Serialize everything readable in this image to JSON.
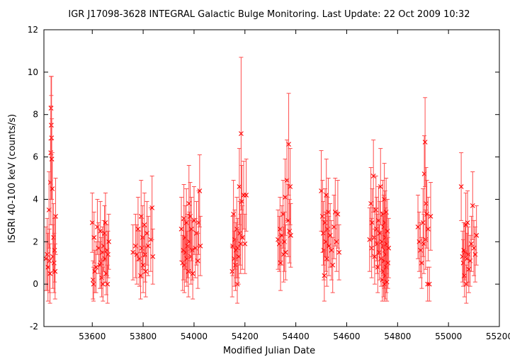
{
  "chart_data": {
    "type": "scatter",
    "title": "IGR J17098-3628   INTEGRAL Galactic Bulge Monitoring.  Last Update: 22 Oct 2009 10:32",
    "xlabel": "Modified Julian Date",
    "ylabel": "ISGRI 40-100 keV (counts/s)",
    "xlim": [
      53410,
      55200
    ],
    "ylim": [
      -2,
      12
    ],
    "xticks": [
      "53600",
      "53800",
      "54000",
      "54200",
      "54400",
      "54600",
      "54800",
      "55000",
      "55200"
    ],
    "yticks": [
      "-2",
      "0",
      "2",
      "4",
      "6",
      "8",
      "10",
      "12"
    ],
    "grid": false,
    "marker": "x",
    "color": "#ff0000",
    "errorbar_color": "#ff4d4d",
    "series": [
      {
        "points": [
          [
            53418,
            1.2,
            1.5
          ],
          [
            53423,
            1.4,
            1.7
          ],
          [
            53426,
            0.8,
            1.6
          ],
          [
            53430,
            3.5,
            1.8
          ],
          [
            53432,
            1.1,
            1.5
          ],
          [
            53434,
            0.5,
            1.4
          ],
          [
            53436,
            4.8,
            2.0
          ],
          [
            53437,
            6.2,
            2.2
          ],
          [
            53438,
            8.3,
            1.5
          ],
          [
            53439,
            7.5,
            1.4
          ],
          [
            53440,
            6.9,
            2.9
          ],
          [
            53441,
            5.9,
            1.9
          ],
          [
            53443,
            4.5,
            1.7
          ],
          [
            53445,
            1.3,
            1.5
          ],
          [
            53448,
            2.2,
            1.6
          ],
          [
            53450,
            1.0,
            1.4
          ],
          [
            53452,
            1.6,
            1.5
          ],
          [
            53454,
            0.6,
            1.3
          ],
          [
            53456,
            3.2,
            1.8
          ],
          [
            53600,
            2.9,
            1.4
          ],
          [
            53603,
            0.2,
            0.9
          ],
          [
            53605,
            0.0,
            0.8
          ],
          [
            53607,
            2.2,
            1.2
          ],
          [
            53610,
            0.6,
            1.0
          ],
          [
            53615,
            0.8,
            1.2
          ],
          [
            53620,
            2.7,
            1.3
          ],
          [
            53625,
            1.7,
            1.2
          ],
          [
            53630,
            0.9,
            1.1
          ],
          [
            53632,
            2.5,
            1.4
          ],
          [
            53635,
            1.0,
            1.2
          ],
          [
            53637,
            0.3,
            0.9
          ],
          [
            53640,
            1.5,
            1.2
          ],
          [
            53642,
            0.0,
            0.8
          ],
          [
            53645,
            1.8,
            1.2
          ],
          [
            53648,
            2.4,
            1.3
          ],
          [
            53650,
            1.2,
            1.1
          ],
          [
            53652,
            2.9,
            1.4
          ],
          [
            53655,
            0.5,
            1.0
          ],
          [
            53658,
            1.6,
            1.2
          ],
          [
            53660,
            0.0,
            0.9
          ],
          [
            53662,
            1.4,
            1.1
          ],
          [
            53665,
            2.0,
            1.3
          ],
          [
            53760,
            1.5,
            1.3
          ],
          [
            53770,
            1.8,
            1.5
          ],
          [
            53775,
            1.4,
            1.4
          ],
          [
            53780,
            2.6,
            1.5
          ],
          [
            53785,
            1.2,
            1.3
          ],
          [
            53790,
            0.4,
            1.1
          ],
          [
            53792,
            3.2,
            1.7
          ],
          [
            53795,
            1.7,
            1.4
          ],
          [
            53798,
            2.2,
            1.5
          ],
          [
            53800,
            0.9,
            1.3
          ],
          [
            53805,
            2.8,
            1.5
          ],
          [
            53808,
            1.4,
            1.3
          ],
          [
            53810,
            0.6,
            1.2
          ],
          [
            53815,
            2.4,
            1.5
          ],
          [
            53820,
            1.8,
            1.4
          ],
          [
            53830,
            2.1,
            1.5
          ],
          [
            53835,
            3.6,
            1.5
          ],
          [
            53838,
            1.3,
            1.3
          ],
          [
            53950,
            2.6,
            1.5
          ],
          [
            53955,
            1.0,
            1.3
          ],
          [
            53958,
            1.6,
            1.4
          ],
          [
            53960,
            3.1,
            1.6
          ],
          [
            53962,
            0.9,
            1.3
          ],
          [
            53965,
            2.2,
            1.5
          ],
          [
            53968,
            1.5,
            1.4
          ],
          [
            53970,
            2.9,
            1.6
          ],
          [
            53972,
            1.2,
            1.3
          ],
          [
            53975,
            1.8,
            1.5
          ],
          [
            53978,
            0.6,
            1.2
          ],
          [
            53980,
            3.8,
            1.8
          ],
          [
            53982,
            2.0,
            1.4
          ],
          [
            53985,
            3.2,
            1.6
          ],
          [
            53988,
            1.3,
            1.3
          ],
          [
            53990,
            2.6,
            1.5
          ],
          [
            53993,
            1.6,
            1.4
          ],
          [
            53995,
            0.5,
            1.2
          ],
          [
            54000,
            3.0,
            1.6
          ],
          [
            54005,
            1.7,
            1.4
          ],
          [
            54010,
            2.4,
            1.5
          ],
          [
            54015,
            1.1,
            1.3
          ],
          [
            54018,
            2.9,
            1.5
          ],
          [
            54022,
            4.4,
            1.7
          ],
          [
            54025,
            1.8,
            1.4
          ],
          [
            54150,
            0.6,
            1.2
          ],
          [
            54152,
            1.8,
            1.4
          ],
          [
            54155,
            3.3,
            1.6
          ],
          [
            54158,
            1.2,
            1.3
          ],
          [
            54160,
            2.1,
            1.4
          ],
          [
            54163,
            0.9,
            1.2
          ],
          [
            54165,
            1.6,
            1.3
          ],
          [
            54168,
            2.6,
            1.5
          ],
          [
            54170,
            0.0,
            0.9
          ],
          [
            54172,
            1.7,
            1.4
          ],
          [
            54175,
            1.3,
            1.3
          ],
          [
            54178,
            4.6,
            1.8
          ],
          [
            54180,
            2.4,
            1.5
          ],
          [
            54183,
            1.9,
            1.4
          ],
          [
            54185,
            7.1,
            3.6
          ],
          [
            54188,
            3.9,
            1.7
          ],
          [
            54190,
            2.2,
            1.5
          ],
          [
            54195,
            4.2,
            1.6
          ],
          [
            54200,
            1.9,
            1.4
          ],
          [
            54205,
            4.2,
            1.7
          ],
          [
            54330,
            2.1,
            1.4
          ],
          [
            54335,
            1.9,
            1.3
          ],
          [
            54338,
            2.6,
            1.5
          ],
          [
            54340,
            1.0,
            1.3
          ],
          [
            54345,
            2.3,
            1.4
          ],
          [
            54350,
            3.3,
            1.6
          ],
          [
            54352,
            1.4,
            1.3
          ],
          [
            54355,
            2.0,
            1.4
          ],
          [
            54358,
            4.1,
            1.8
          ],
          [
            54360,
            1.5,
            1.3
          ],
          [
            54365,
            4.9,
            1.9
          ],
          [
            54370,
            3.0,
            1.7
          ],
          [
            54372,
            6.6,
            2.4
          ],
          [
            54375,
            2.5,
            1.5
          ],
          [
            54378,
            4.6,
            1.8
          ],
          [
            54380,
            2.3,
            1.5
          ],
          [
            54500,
            4.4,
            1.9
          ],
          [
            54505,
            3.2,
            1.7
          ],
          [
            54508,
            2.4,
            1.5
          ],
          [
            54510,
            1.6,
            1.4
          ],
          [
            54512,
            0.4,
            1.2
          ],
          [
            54515,
            2.9,
            1.6
          ],
          [
            54518,
            2.0,
            1.4
          ],
          [
            54520,
            4.2,
            1.7
          ],
          [
            54522,
            1.2,
            1.3
          ],
          [
            54525,
            2.6,
            1.5
          ],
          [
            54528,
            3.4,
            1.6
          ],
          [
            54530,
            1.8,
            1.4
          ],
          [
            54535,
            2.3,
            1.5
          ],
          [
            54540,
            1.6,
            1.4
          ],
          [
            54545,
            0.9,
            1.3
          ],
          [
            54550,
            2.7,
            1.5
          ],
          [
            54555,
            3.4,
            1.6
          ],
          [
            54560,
            2.0,
            1.4
          ],
          [
            54565,
            3.3,
            1.6
          ],
          [
            54570,
            1.5,
            1.3
          ],
          [
            54690,
            2.1,
            1.5
          ],
          [
            54695,
            3.8,
            1.7
          ],
          [
            54698,
            1.7,
            1.4
          ],
          [
            54700,
            2.9,
            1.6
          ],
          [
            54705,
            5.1,
            1.7
          ],
          [
            54708,
            2.2,
            1.4
          ],
          [
            54710,
            1.3,
            1.3
          ],
          [
            54715,
            3.5,
            1.6
          ],
          [
            54718,
            2.6,
            1.5
          ],
          [
            54720,
            1.9,
            1.4
          ],
          [
            54722,
            0.8,
            1.2
          ],
          [
            54725,
            3.0,
            1.6
          ],
          [
            54728,
            1.5,
            1.3
          ],
          [
            54730,
            2.4,
            1.5
          ],
          [
            54733,
            4.6,
            1.8
          ],
          [
            54735,
            1.2,
            1.3
          ],
          [
            54738,
            2.0,
            1.4
          ],
          [
            54740,
            0.2,
            1.0
          ],
          [
            54742,
            3.3,
            1.6
          ],
          [
            54744,
            1.8,
            1.4
          ],
          [
            54745,
            0.6,
            1.2
          ],
          [
            54746,
            2.7,
            1.5
          ],
          [
            54747,
            1.1,
            1.3
          ],
          [
            54748,
            4.0,
            1.7
          ],
          [
            54749,
            0.0,
            0.8
          ],
          [
            54750,
            1.6,
            1.3
          ],
          [
            54751,
            2.9,
            1.5
          ],
          [
            54752,
            0.4,
            1.1
          ],
          [
            54753,
            2.2,
            1.4
          ],
          [
            54754,
            1.4,
            1.3
          ],
          [
            54755,
            3.4,
            1.6
          ],
          [
            54756,
            0.8,
            1.2
          ],
          [
            54757,
            1.9,
            1.4
          ],
          [
            54758,
            0.1,
            0.9
          ],
          [
            54760,
            2.5,
            1.5
          ],
          [
            54762,
            1.0,
            1.2
          ],
          [
            54765,
            1.7,
            1.4
          ],
          [
            54880,
            2.7,
            1.5
          ],
          [
            54885,
            2.0,
            1.4
          ],
          [
            54890,
            1.6,
            1.3
          ],
          [
            54895,
            1.0,
            1.2
          ],
          [
            54900,
            2.9,
            1.6
          ],
          [
            54903,
            1.9,
            1.4
          ],
          [
            54905,
            5.2,
            1.8
          ],
          [
            54908,
            6.7,
            2.1
          ],
          [
            54910,
            2.1,
            1.4
          ],
          [
            54912,
            3.8,
            1.7
          ],
          [
            54915,
            3.3,
            1.6
          ],
          [
            54918,
            0.0,
            0.8
          ],
          [
            54920,
            2.6,
            1.5
          ],
          [
            54925,
            0.0,
            0.8
          ],
          [
            54930,
            3.2,
            1.6
          ],
          [
            55050,
            4.6,
            1.6
          ],
          [
            55055,
            1.3,
            1.2
          ],
          [
            55058,
            1.0,
            1.1
          ],
          [
            55060,
            1.6,
            1.3
          ],
          [
            55063,
            0.4,
            1.0
          ],
          [
            55065,
            1.5,
            1.3
          ],
          [
            55068,
            2.8,
            1.5
          ],
          [
            55070,
            0.0,
            0.9
          ],
          [
            55072,
            1.2,
            1.2
          ],
          [
            55075,
            2.9,
            1.5
          ],
          [
            55078,
            1.4,
            1.3
          ],
          [
            55080,
            0.7,
            1.1
          ],
          [
            55085,
            1.1,
            1.2
          ],
          [
            55090,
            1.9,
            1.3
          ],
          [
            55095,
            3.7,
            1.6
          ],
          [
            55100,
            1.7,
            1.3
          ],
          [
            55105,
            1.4,
            1.3
          ],
          [
            55110,
            2.3,
            1.4
          ]
        ]
      }
    ]
  }
}
